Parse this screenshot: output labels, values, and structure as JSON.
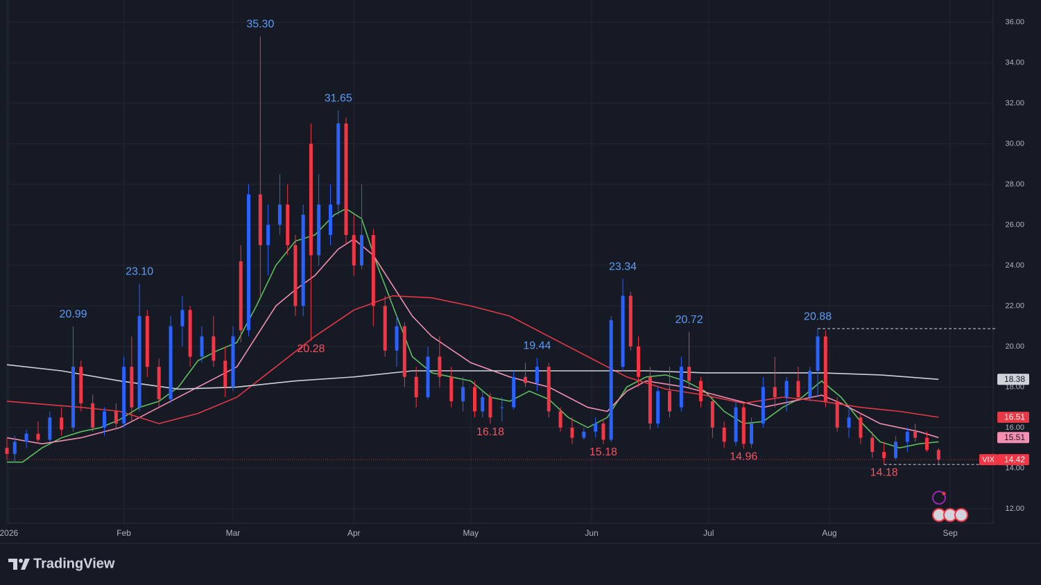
{
  "chart_data": {
    "type": "candlestick",
    "up_color": "#2962ff",
    "down_color": "#f23645",
    "x": [
      1,
      3,
      6,
      9,
      12,
      15,
      18,
      20,
      23,
      26,
      29,
      31,
      33,
      35,
      37,
      40,
      43,
      46,
      48,
      51,
      54,
      57,
      59,
      61,
      63,
      66,
      68,
      71,
      73,
      75,
      77,
      79,
      81,
      84,
      86,
      88,
      90,
      92,
      95,
      98,
      101,
      103,
      106,
      109,
      112,
      115,
      118,
      121,
      123,
      125,
      128,
      131,
      134,
      137,
      140,
      143,
      146,
      149,
      152,
      154,
      156,
      159,
      161,
      163,
      166,
      168,
      171,
      174,
      176,
      179,
      182,
      185,
      188,
      190,
      192,
      195,
      198,
      201,
      204,
      207,
      209,
      211,
      214,
      217,
      220,
      223,
      226,
      229,
      232,
      234,
      237,
      240
    ],
    "open": [
      15.0,
      14.7,
      15.3,
      15.7,
      15.4,
      16.5,
      16.0,
      19.0,
      17.2,
      16.0,
      16.8,
      16.2,
      19.0,
      17.0,
      21.5,
      19.0,
      17.4,
      21.0,
      21.8,
      19.5,
      20.5,
      19.3,
      18.0,
      24.2,
      20.8,
      27.5,
      25.0,
      26.0,
      27.0,
      25.0,
      22.0,
      30.0,
      24.5,
      25.5,
      27.0,
      31.0,
      25.5,
      24.0,
      25.5,
      22.0,
      19.8,
      21.0,
      18.5,
      17.5,
      19.5,
      18.5,
      17.3,
      18.0,
      16.8,
      17.5,
      17.0,
      17.0,
      18.5,
      18.2,
      19.0,
      16.8,
      16.0,
      15.5,
      15.8,
      16.2,
      15.4,
      19.0,
      22.5,
      20.0,
      18.5,
      16.2,
      17.8,
      17.0,
      19.0,
      18.3,
      17.3,
      16.0,
      15.3,
      17.0,
      15.2,
      16.2,
      18.0,
      17.5,
      18.3,
      17.5,
      18.8,
      20.5,
      17.3,
      16.0,
      16.5,
      15.5,
      14.8,
      14.5,
      15.3,
      15.8,
      15.5,
      14.9
    ],
    "high": [
      15.5,
      15.6,
      15.9,
      16.3,
      16.8,
      17.0,
      20.99,
      19.3,
      17.6,
      17.0,
      17.2,
      19.5,
      20.5,
      23.1,
      21.8,
      19.4,
      21.5,
      22.5,
      22.0,
      21.0,
      21.5,
      20.0,
      21.0,
      25.0,
      28.0,
      35.3,
      27.0,
      28.5,
      28.0,
      25.5,
      27.0,
      31.0,
      28.5,
      28.0,
      31.65,
      31.3,
      26.5,
      28.0,
      25.8,
      22.5,
      21.5,
      21.2,
      19.0,
      20.0,
      20.5,
      19.0,
      18.5,
      18.3,
      17.8,
      17.7,
      17.5,
      18.8,
      19.2,
      19.44,
      19.2,
      17.0,
      16.5,
      16.0,
      16.5,
      16.4,
      21.5,
      23.34,
      22.7,
      20.5,
      19.0,
      18.0,
      19.0,
      19.5,
      20.72,
      18.5,
      17.5,
      16.3,
      17.3,
      17.2,
      16.5,
      18.5,
      19.5,
      18.5,
      19.0,
      19.0,
      20.88,
      20.8,
      17.5,
      17.0,
      16.7,
      15.8,
      15.3,
      15.6,
      16.0,
      16.2,
      15.8,
      15.0
    ],
    "low": [
      14.4,
      14.3,
      15.0,
      15.2,
      15.3,
      15.6,
      15.8,
      16.8,
      15.8,
      15.6,
      15.9,
      16.0,
      16.3,
      16.8,
      18.5,
      17.0,
      17.2,
      20.0,
      19.0,
      19.2,
      19.0,
      17.5,
      17.8,
      20.2,
      20.5,
      22.5,
      23.5,
      25.5,
      24.5,
      21.5,
      21.5,
      20.28,
      24.0,
      25.0,
      26.5,
      25.0,
      23.5,
      23.8,
      21.0,
      19.5,
      19.0,
      18.0,
      17.0,
      17.4,
      18.0,
      17.0,
      16.8,
      16.5,
      16.5,
      16.18,
      16.3,
      16.9,
      18.0,
      17.8,
      16.5,
      15.8,
      15.2,
      15.4,
      15.5,
      15.18,
      15.3,
      18.8,
      19.8,
      18.0,
      15.9,
      16.0,
      16.5,
      16.8,
      18.0,
      17.0,
      15.5,
      15.0,
      15.1,
      14.96,
      15.0,
      16.0,
      17.0,
      16.8,
      17.3,
      17.3,
      17.5,
      17.0,
      15.8,
      15.5,
      15.2,
      14.5,
      14.18,
      14.4,
      14.8,
      15.3,
      14.8,
      14.2
    ],
    "close": [
      14.7,
      15.3,
      15.7,
      15.4,
      16.5,
      15.9,
      19.0,
      17.2,
      16.0,
      16.8,
      16.2,
      19.0,
      17.0,
      21.5,
      19.0,
      17.4,
      21.0,
      21.8,
      19.5,
      20.5,
      19.3,
      18.0,
      20.5,
      20.8,
      27.5,
      25.0,
      26.0,
      27.0,
      25.0,
      22.0,
      26.5,
      24.5,
      27.0,
      27.0,
      31.0,
      25.5,
      24.0,
      25.5,
      22.0,
      19.8,
      21.0,
      18.5,
      17.5,
      19.5,
      18.5,
      17.3,
      18.0,
      16.8,
      17.5,
      16.5,
      17.0,
      18.5,
      18.2,
      19.0,
      16.8,
      16.0,
      15.5,
      15.8,
      16.2,
      15.4,
      21.3,
      22.5,
      20.0,
      18.5,
      16.2,
      17.8,
      16.8,
      19.0,
      18.3,
      17.3,
      16.0,
      15.3,
      17.0,
      15.2,
      16.2,
      18.0,
      17.5,
      18.3,
      17.5,
      18.8,
      20.5,
      17.3,
      16.0,
      16.5,
      15.5,
      14.8,
      14.5,
      15.3,
      15.8,
      15.5,
      14.9,
      14.42
    ],
    "overlays": [
      {
        "color": "#5fbf5f",
        "x": [
          1,
          5,
          10,
          15,
          20,
          25,
          30,
          35,
          40,
          45,
          50,
          55,
          60,
          65,
          70,
          75,
          80,
          85,
          88,
          92,
          96,
          100,
          105,
          110,
          115,
          120,
          125,
          130,
          135,
          140,
          145,
          150,
          155,
          160,
          165,
          170,
          175,
          180,
          185,
          190,
          195,
          200,
          205,
          210,
          215,
          220,
          225,
          230,
          235,
          240
        ],
        "values": [
          14.3,
          14.3,
          15.0,
          15.5,
          15.8,
          16.0,
          16.4,
          17.0,
          17.3,
          18.0,
          19.3,
          19.8,
          20.2,
          22.0,
          24.0,
          25.2,
          25.5,
          26.5,
          26.8,
          26.3,
          24.0,
          22.0,
          19.5,
          18.7,
          18.5,
          18.3,
          17.5,
          17.3,
          17.8,
          17.4,
          16.5,
          16.0,
          16.5,
          18.0,
          18.5,
          18.6,
          18.3,
          17.8,
          16.8,
          16.2,
          16.3,
          17.0,
          17.5,
          18.3,
          17.5,
          16.3,
          15.3,
          15.0,
          15.2,
          15.3
        ]
      },
      {
        "color": "#f48fb1",
        "tag": true,
        "x": [
          1,
          10,
          20,
          30,
          40,
          50,
          60,
          65,
          70,
          75,
          80,
          86,
          90,
          95,
          100,
          105,
          110,
          120,
          130,
          140,
          150,
          155,
          160,
          165,
          175,
          185,
          195,
          205,
          210,
          215,
          225,
          235,
          240
        ],
        "values": [
          15.5,
          15.2,
          15.5,
          16.0,
          17.0,
          18.0,
          19.0,
          20.5,
          22.0,
          22.8,
          23.5,
          24.8,
          25.3,
          24.5,
          23.0,
          21.5,
          20.5,
          19.2,
          18.5,
          18.0,
          17.0,
          16.8,
          17.8,
          18.3,
          18.0,
          17.5,
          17.0,
          17.4,
          17.6,
          17.2,
          16.2,
          15.8,
          15.51
        ]
      },
      {
        "color": "#e53945",
        "tag": true,
        "x": [
          1,
          20,
          30,
          40,
          50,
          60,
          70,
          80,
          90,
          100,
          110,
          120,
          130,
          140,
          150,
          160,
          170,
          180,
          190,
          200,
          210,
          220,
          230,
          240
        ],
        "values": [
          17.3,
          17.0,
          16.8,
          16.2,
          16.7,
          17.5,
          19.0,
          20.5,
          21.8,
          22.5,
          22.4,
          22.0,
          21.5,
          20.5,
          19.5,
          18.5,
          17.9,
          17.6,
          17.2,
          17.5,
          17.3,
          17.0,
          16.8,
          16.51
        ]
      },
      {
        "color": "#cfd2d8",
        "tag": true,
        "x": [
          1,
          15,
          30,
          45,
          60,
          75,
          90,
          105,
          120,
          135,
          150,
          165,
          180,
          195,
          210,
          225,
          240
        ],
        "values": [
          19.1,
          18.8,
          18.3,
          17.9,
          18.0,
          18.3,
          18.5,
          18.8,
          18.8,
          18.8,
          18.8,
          18.8,
          18.7,
          18.7,
          18.7,
          18.6,
          18.38
        ]
      }
    ],
    "annotations": [
      {
        "x": 18,
        "value": 20.99,
        "label": "20.99",
        "color": "#5b9cf6"
      },
      {
        "x": 35,
        "value": 23.1,
        "label": "23.10",
        "color": "#5b9cf6"
      },
      {
        "x": 66,
        "value": 35.3,
        "label": "35.30",
        "color": "#5b9cf6"
      },
      {
        "x": 86,
        "value": 31.65,
        "label": "31.65",
        "color": "#5b9cf6"
      },
      {
        "x": 79,
        "value": 20.28,
        "label": "20.28",
        "color": "#f7525f",
        "below": true
      },
      {
        "x": 125,
        "value": 16.18,
        "label": "16.18",
        "color": "#f7525f",
        "below": true
      },
      {
        "x": 137,
        "value": 19.44,
        "label": "19.44",
        "color": "#5b9cf6"
      },
      {
        "x": 154,
        "value": 15.18,
        "label": "15.18",
        "color": "#f7525f",
        "below": true
      },
      {
        "x": 159,
        "value": 23.34,
        "label": "23.34",
        "color": "#5b9cf6"
      },
      {
        "x": 176,
        "value": 20.72,
        "label": "20.72",
        "color": "#5b9cf6"
      },
      {
        "x": 190,
        "value": 14.96,
        "label": "14.96",
        "color": "#f7525f",
        "below": true
      },
      {
        "x": 209,
        "value": 20.88,
        "label": "20.88",
        "color": "#5b9cf6",
        "extend": true
      },
      {
        "x": 226,
        "value": 14.18,
        "label": "14.18",
        "color": "#f7525f",
        "below": true,
        "extend": true
      }
    ],
    "symbol": "VIX",
    "xlim": [
      1,
      254
    ],
    "xticks": [
      {
        "value": 1.5,
        "label": "2026"
      },
      {
        "value": 31,
        "label": "Feb"
      },
      {
        "value": 59,
        "label": "Mar"
      },
      {
        "value": 90,
        "label": "Apr"
      },
      {
        "value": 120,
        "label": "May"
      },
      {
        "value": 151,
        "label": "Jun"
      },
      {
        "value": 181,
        "label": "Jul"
      },
      {
        "value": 212,
        "label": "Aug"
      },
      {
        "value": 243,
        "label": "Sep"
      }
    ],
    "ylim": [
      11.28,
      37.09
    ],
    "yticks": [
      {
        "value": 12,
        "label": "12.00"
      },
      {
        "value": 14,
        "label": "14.00"
      },
      {
        "value": 16,
        "label": "16.00"
      },
      {
        "value": 18,
        "label": "18.00"
      },
      {
        "value": 20,
        "label": "20.00"
      },
      {
        "value": 22,
        "label": "22.00"
      },
      {
        "value": 24,
        "label": "24.00"
      },
      {
        "value": 26,
        "label": "26.00"
      },
      {
        "value": 28,
        "label": "28.00"
      },
      {
        "value": 30,
        "label": "30.00"
      },
      {
        "value": 32,
        "label": "32.00"
      },
      {
        "value": 34,
        "label": "34.00"
      },
      {
        "value": 36,
        "label": "36.00"
      }
    ],
    "grid": true
  },
  "brand": "TradingView"
}
